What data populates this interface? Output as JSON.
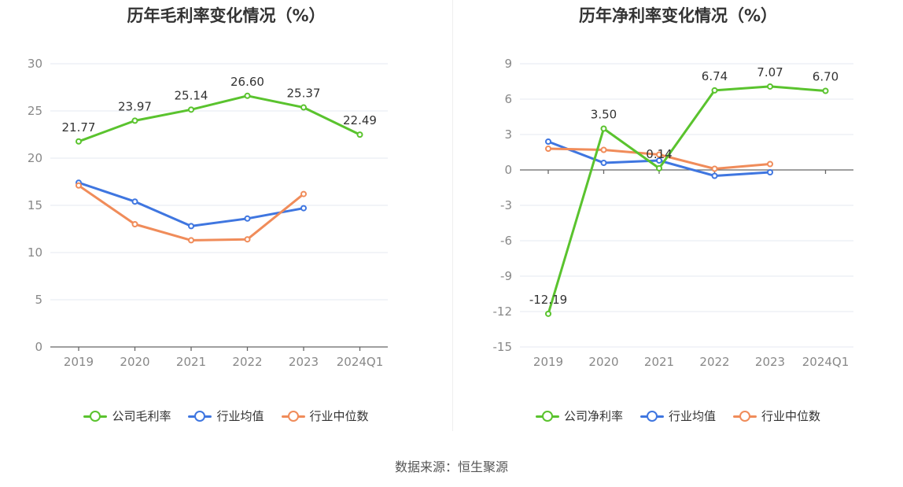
{
  "source": "数据来源：恒生聚源",
  "chart_data": [
    {
      "type": "line",
      "title": "历年毛利率变化情况（%）",
      "categories": [
        "2019",
        "2020",
        "2021",
        "2022",
        "2023",
        "2024Q1"
      ],
      "ylim": [
        0,
        30
      ],
      "yticks": [
        0,
        5,
        10,
        15,
        20,
        25,
        30
      ],
      "series": [
        {
          "name": "公司毛利率",
          "color": "#5ac32e",
          "values": [
            21.77,
            23.97,
            25.14,
            26.6,
            25.37,
            22.49
          ],
          "labels": true
        },
        {
          "name": "行业均值",
          "color": "#3f76e0",
          "values": [
            17.4,
            15.4,
            12.8,
            13.6,
            14.7,
            null
          ],
          "labels": false
        },
        {
          "name": "行业中位数",
          "color": "#f08c5a",
          "values": [
            17.1,
            13.0,
            11.3,
            11.4,
            16.2,
            null
          ],
          "labels": false
        }
      ]
    },
    {
      "type": "line",
      "title": "历年净利率变化情况（%）",
      "categories": [
        "2019",
        "2020",
        "2021",
        "2022",
        "2023",
        "2024Q1"
      ],
      "ylim": [
        -15,
        9
      ],
      "yticks": [
        -15,
        -12,
        -9,
        -6,
        -3,
        0,
        3,
        6,
        9
      ],
      "series": [
        {
          "name": "公司净利率",
          "color": "#5ac32e",
          "values": [
            -12.19,
            3.5,
            0.14,
            6.74,
            7.07,
            6.7
          ],
          "labels": true
        },
        {
          "name": "行业均值",
          "color": "#3f76e0",
          "values": [
            2.4,
            0.6,
            0.8,
            -0.5,
            -0.2,
            null
          ],
          "labels": false
        },
        {
          "name": "行业中位数",
          "color": "#f08c5a",
          "values": [
            1.8,
            1.7,
            1.3,
            0.1,
            0.5,
            null
          ],
          "labels": false
        }
      ]
    }
  ]
}
